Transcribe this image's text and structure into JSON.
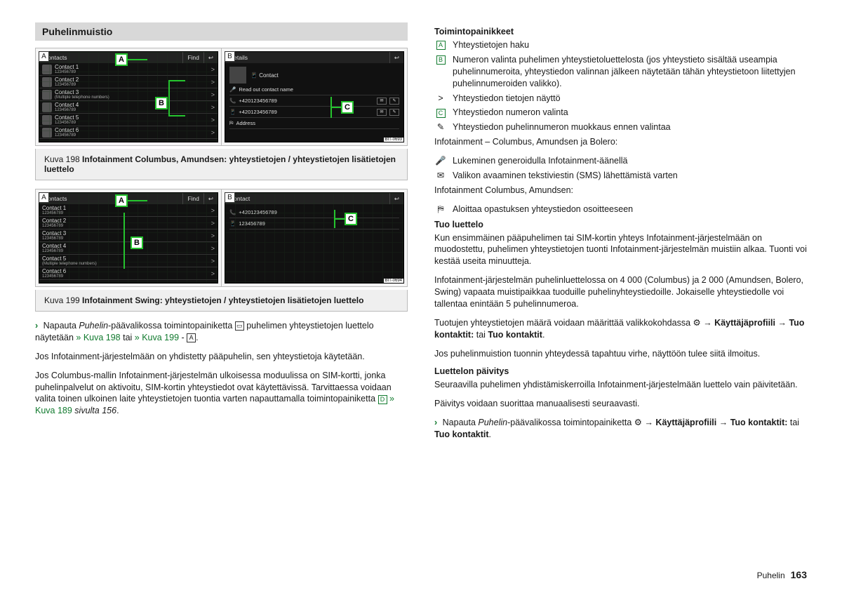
{
  "section_title": "Puhelinmuistio",
  "fig198": {
    "left_tag": "A",
    "right_tag": "B",
    "screenA": {
      "title": "Contacts",
      "find": "Find",
      "rows": [
        {
          "n": "Contact 1",
          "s": "123456789"
        },
        {
          "n": "Contact 2",
          "s": "123456789"
        },
        {
          "n": "Contact 3",
          "s": "(Multiple telephone numbers)"
        },
        {
          "n": "Contact 4",
          "s": "123456789"
        },
        {
          "n": "Contact 5",
          "s": "123456789"
        },
        {
          "n": "Contact 6",
          "s": "123456789"
        }
      ],
      "calloutA": "A",
      "calloutB": "B"
    },
    "screenB": {
      "title": "Details",
      "name": "Contact",
      "rows": [
        "Read out contact name",
        "+420123456789",
        "+420123456789",
        "Address"
      ],
      "calloutC": "C"
    },
    "bit": "BIT-0693",
    "caption_lead": "Kuva 198 ",
    "caption_bold": "Infotainment Columbus, Amundsen: yhteystietojen / yhteystietojen lisätietojen luettelo"
  },
  "fig199": {
    "left_tag": "A",
    "right_tag": "B",
    "screenA": {
      "title": "Contacts",
      "find": "Find",
      "rows": [
        {
          "n": "Contact 1",
          "s": "123456789"
        },
        {
          "n": "Contact 2",
          "s": "123456789"
        },
        {
          "n": "Contact 3",
          "s": "123456789"
        },
        {
          "n": "Contact 4",
          "s": "123456789"
        },
        {
          "n": "Contact 5",
          "s": "(Multiple telephone numbers)"
        },
        {
          "n": "Contact 6",
          "s": "123456789"
        }
      ],
      "calloutA": "A",
      "calloutB": "B"
    },
    "screenB": {
      "title": "Contact",
      "rows": [
        "+420123456789",
        "123456789"
      ],
      "calloutC": "C"
    },
    "bit": "BIT-0694",
    "caption_lead": "Kuva 199 ",
    "caption_bold": "Infotainment Swing: yhteystietojen / yhteystietojen lisätietojen luettelo"
  },
  "left_text": {
    "p1a": "Napauta ",
    "p1b": "Puhelin",
    "p1c": "-päävalikossa toimintopainiketta ",
    "p1d": " puhelimen yhteystietojen luettelo näytetään ",
    "link1": "» Kuva 198",
    "mid": " tai ",
    "link2": "» Kuva 199",
    "dashA": " - ",
    "p2": "Jos Infotainment-järjestelmään on yhdistetty pääpuhelin, sen yhteystietoja käytetään.",
    "p3a": "Jos Columbus-mallin Infotainment-järjestelmän ulkoisessa moduulissa on SIM-kortti, jonka puhelinpalvelut on aktivoitu, SIM-kortin yhteystiedot ovat käytettävissä. Tarvittaessa voidaan valita toinen ulkoinen laite yhteystietojen tuontia varten napauttamalla toimintopainiketta ",
    "keyD": "D",
    "link3": " » Kuva 189 ",
    "p3tail": "sivulta 156",
    "dot": "."
  },
  "right": {
    "h1": "Toimintopainikkeet",
    "rA": {
      "k": "A",
      "t": "Yhteystietojen haku"
    },
    "rB": {
      "k": "B",
      "t": "Numeron valinta puhelimen yhteystietoluettelosta (jos yhteystieto sisältää useampia puhelinnumeroita, yhteystiedon valinnan jälkeen näytetään tähän yhteystietoon liitettyjen puhelinnumeroiden valikko)."
    },
    "rChev": {
      "k": ">",
      "t": "Yhteystiedon tietojen näyttö"
    },
    "rC": {
      "k": "C",
      "t": "Yhteystiedon numeron valinta"
    },
    "rPen": {
      "k": "✎",
      "t": "Yhteystiedon puhelinnumeron muokkaus ennen valintaa"
    },
    "mid1": "Infotainment – Columbus, Amundsen ja Bolero:",
    "rMic": {
      "k": "🎤",
      "t": "Lukeminen generoidulla Infotainment-äänellä"
    },
    "rMsg": {
      "k": "✉",
      "t": "Valikon avaaminen tekstiviestin (SMS) lähettämistä varten"
    },
    "mid2": "Infotainment Columbus, Amundsen:",
    "rNav": {
      "k": "⛿",
      "t": "Aloittaa opastuksen yhteystiedon osoitteeseen"
    },
    "h2": "Tuo luettelo",
    "p4": "Kun ensimmäinen pääpuhelimen tai SIM-kortin yhteys Infotainment-järjestelmään on muodostettu, puhelimen yhteystietojen tuonti Infotainment-järjestelmän muistiin alkaa. Tuonti voi kestää useita minuutteja.",
    "p5": "Infotainment-järjestelmän puhelinluettelossa on 4 000 (Columbus) ja 2 000 (Amundsen, Bolero, Swing) vapaata muistipaikkaa tuoduille puhelinyhteystiedoille. Jokaiselle yhteystiedolle voi tallentaa enintään 5 puhelinnumeroa.",
    "p6a": "Tuotujen yhteystietojen määrä voidaan määrittää valikkokohdassa ",
    "gear": "⚙",
    "arrow": " → ",
    "p6b": "Käyttäjäprofiili",
    "p6c": " → ",
    "p6d": "Tuo kontaktit:",
    "p6e": " tai ",
    "p6f": "Tuo kontaktit",
    "p6g": ".",
    "p7": "Jos puhelinmuistion tuonnin yhteydessä tapahtuu virhe, näyttöön tulee siitä ilmoitus.",
    "h3": "Luettelon päivitys",
    "p8": "Seuraavilla puhelimen yhdistämiskerroilla Infotainment-järjestelmään luettelo vain päivitetään.",
    "p9": "Päivitys voidaan suorittaa manuaalisesti seuraavasti.",
    "p10a": "Napauta ",
    "p10b": "Puhelin",
    "p10c": "-päävalikossa toimintopainiketta ",
    "p10d": "Käyttäjäprofiili",
    "p10e": "Tuo kontaktit:",
    "p10f": "Tuo kontaktit"
  },
  "footer_label": "Puhelin",
  "footer_page": "163"
}
